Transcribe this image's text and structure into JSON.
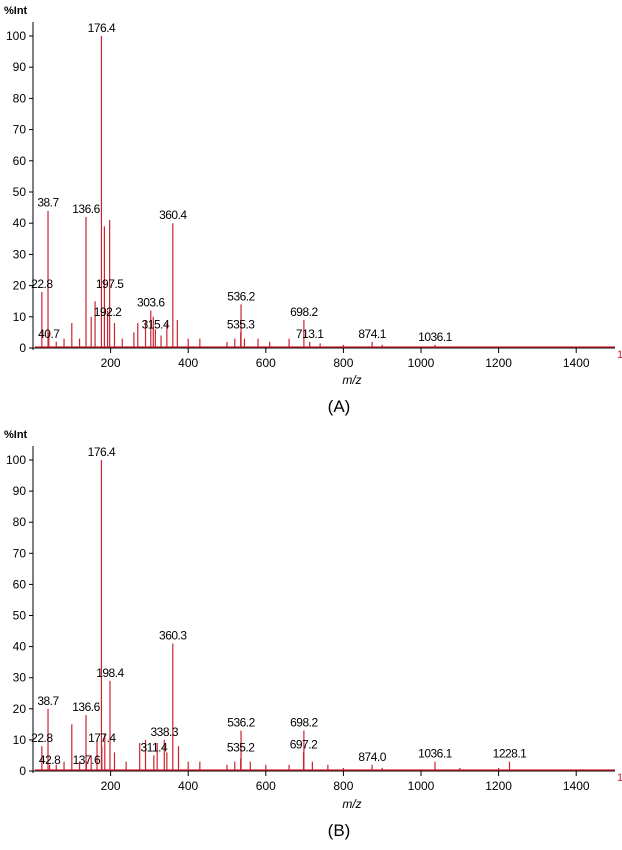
{
  "chart_data": [
    {
      "type": "line",
      "panel_label": "(A)",
      "ylabel": "%Int",
      "xlabel": "m/z",
      "xlim": [
        0,
        1500
      ],
      "ylim": [
        0,
        100
      ],
      "xticks": [
        200,
        400,
        600,
        800,
        1000,
        1200,
        1400
      ],
      "yticks": [
        0,
        10,
        20,
        30,
        40,
        50,
        60,
        70,
        80,
        90,
        100
      ],
      "end_label": "1",
      "color": "#cc2230",
      "series": [
        {
          "peaks": [
            [
              22.8,
              18
            ],
            [
              38.7,
              44
            ],
            [
              40.7,
              5
            ],
            [
              60,
              2
            ],
            [
              80,
              3
            ],
            [
              100,
              8
            ],
            [
              120,
              3
            ],
            [
              136.6,
              42
            ],
            [
              150,
              10
            ],
            [
              160,
              15
            ],
            [
              176.4,
              100
            ],
            [
              184,
              39
            ],
            [
              192.2,
              12
            ],
            [
              197.5,
              41
            ],
            [
              210,
              8
            ],
            [
              230,
              3
            ],
            [
              260,
              5
            ],
            [
              270,
              8
            ],
            [
              290,
              9
            ],
            [
              303.6,
              12
            ],
            [
              310,
              10
            ],
            [
              315.4,
              6
            ],
            [
              330,
              4
            ],
            [
              345,
              8
            ],
            [
              360.4,
              40
            ],
            [
              372,
              9
            ],
            [
              400,
              3
            ],
            [
              430,
              3
            ],
            [
              500,
              2
            ],
            [
              520,
              3
            ],
            [
              535.3,
              5
            ],
            [
              536.2,
              14
            ],
            [
              545,
              3
            ],
            [
              580,
              3
            ],
            [
              610,
              2
            ],
            [
              660,
              3
            ],
            [
              698.2,
              9
            ],
            [
              713.1,
              2
            ],
            [
              740,
              1.5
            ],
            [
              800,
              1
            ],
            [
              874.1,
              2
            ],
            [
              900,
              1
            ],
            [
              1036.1,
              1
            ],
            [
              1100,
              0.5
            ],
            [
              1200,
              0.5
            ],
            [
              1400,
              0.3
            ]
          ]
        }
      ],
      "annotations": [
        {
          "x": 176.4,
          "y": 100,
          "text": "176.4"
        },
        {
          "x": 38.7,
          "y": 44,
          "text": "38.7"
        },
        {
          "x": 136.6,
          "y": 42,
          "text": "136.6"
        },
        {
          "x": 360.4,
          "y": 40,
          "text": "360.4"
        },
        {
          "x": 22.8,
          "y": 18,
          "text": "22.8"
        },
        {
          "x": 197.5,
          "y": 18,
          "text": "197.5"
        },
        {
          "x": 192.2,
          "y": 9,
          "text": "192.2"
        },
        {
          "x": 303.6,
          "y": 12,
          "text": "303.6"
        },
        {
          "x": 315.4,
          "y": 5,
          "text": "315.4"
        },
        {
          "x": 40.7,
          "y": 2,
          "text": "40.7"
        },
        {
          "x": 536.2,
          "y": 14,
          "text": "536.2"
        },
        {
          "x": 535.3,
          "y": 5,
          "text": "535.3"
        },
        {
          "x": 698.2,
          "y": 9,
          "text": "698.2"
        },
        {
          "x": 713.1,
          "y": 2,
          "text": "713.1"
        },
        {
          "x": 874.1,
          "y": 2,
          "text": "874.1"
        },
        {
          "x": 1036.1,
          "y": 1,
          "text": "1036.1"
        }
      ]
    },
    {
      "type": "line",
      "panel_label": "(B)",
      "ylabel": "%Int",
      "xlabel": "m/z",
      "xlim": [
        0,
        1500
      ],
      "ylim": [
        0,
        100
      ],
      "xticks": [
        200,
        400,
        600,
        800,
        1000,
        1200,
        1400
      ],
      "yticks": [
        0,
        10,
        20,
        30,
        40,
        50,
        60,
        70,
        80,
        90,
        100
      ],
      "end_label": "1",
      "color": "#cc2230",
      "series": [
        {
          "peaks": [
            [
              22.8,
              8
            ],
            [
              38.7,
              20
            ],
            [
              42.8,
              2
            ],
            [
              60,
              2
            ],
            [
              80,
              3
            ],
            [
              100,
              15
            ],
            [
              120,
              3
            ],
            [
              136.6,
              18
            ],
            [
              137.6,
              3
            ],
            [
              150,
              5
            ],
            [
              165,
              10
            ],
            [
              176.4,
              100
            ],
            [
              177.4,
              8
            ],
            [
              185,
              12
            ],
            [
              198.4,
              29
            ],
            [
              210,
              6
            ],
            [
              240,
              3
            ],
            [
              275,
              9
            ],
            [
              290,
              10
            ],
            [
              311.4,
              5
            ],
            [
              320,
              9
            ],
            [
              338.3,
              10
            ],
            [
              345,
              6
            ],
            [
              360.3,
              41
            ],
            [
              375,
              8
            ],
            [
              400,
              3
            ],
            [
              430,
              3
            ],
            [
              500,
              2
            ],
            [
              520,
              3
            ],
            [
              535.2,
              4
            ],
            [
              536.2,
              13
            ],
            [
              560,
              3
            ],
            [
              600,
              2
            ],
            [
              660,
              2
            ],
            [
              697.2,
              6
            ],
            [
              698.2,
              13
            ],
            [
              720,
              3
            ],
            [
              760,
              2
            ],
            [
              800,
              1
            ],
            [
              874.0,
              2
            ],
            [
              900,
              1
            ],
            [
              1036.1,
              3
            ],
            [
              1100,
              1
            ],
            [
              1200,
              1
            ],
            [
              1228.1,
              3
            ],
            [
              1300,
              0.5
            ],
            [
              1400,
              0.4
            ]
          ]
        }
      ],
      "annotations": [
        {
          "x": 176.4,
          "y": 100,
          "text": "176.4"
        },
        {
          "x": 360.3,
          "y": 41,
          "text": "360.3"
        },
        {
          "x": 198.4,
          "y": 29,
          "text": "198.4"
        },
        {
          "x": 38.7,
          "y": 20,
          "text": "38.7"
        },
        {
          "x": 136.6,
          "y": 18,
          "text": "136.6"
        },
        {
          "x": 22.8,
          "y": 8,
          "text": "22.8"
        },
        {
          "x": 177.4,
          "y": 8,
          "text": "177.4"
        },
        {
          "x": 338.3,
          "y": 10,
          "text": "338.3"
        },
        {
          "x": 311.4,
          "y": 5,
          "text": "311.4"
        },
        {
          "x": 42.8,
          "y": 1,
          "text": "42.8"
        },
        {
          "x": 137.6,
          "y": 1,
          "text": "137.6"
        },
        {
          "x": 536.2,
          "y": 13,
          "text": "536.2"
        },
        {
          "x": 535.2,
          "y": 5,
          "text": "535.2"
        },
        {
          "x": 698.2,
          "y": 13,
          "text": "698.2"
        },
        {
          "x": 697.2,
          "y": 6,
          "text": "697.2"
        },
        {
          "x": 874.0,
          "y": 2,
          "text": "874.0"
        },
        {
          "x": 1036.1,
          "y": 3,
          "text": "1036.1"
        },
        {
          "x": 1228.1,
          "y": 3,
          "text": "1228.1"
        }
      ]
    }
  ]
}
